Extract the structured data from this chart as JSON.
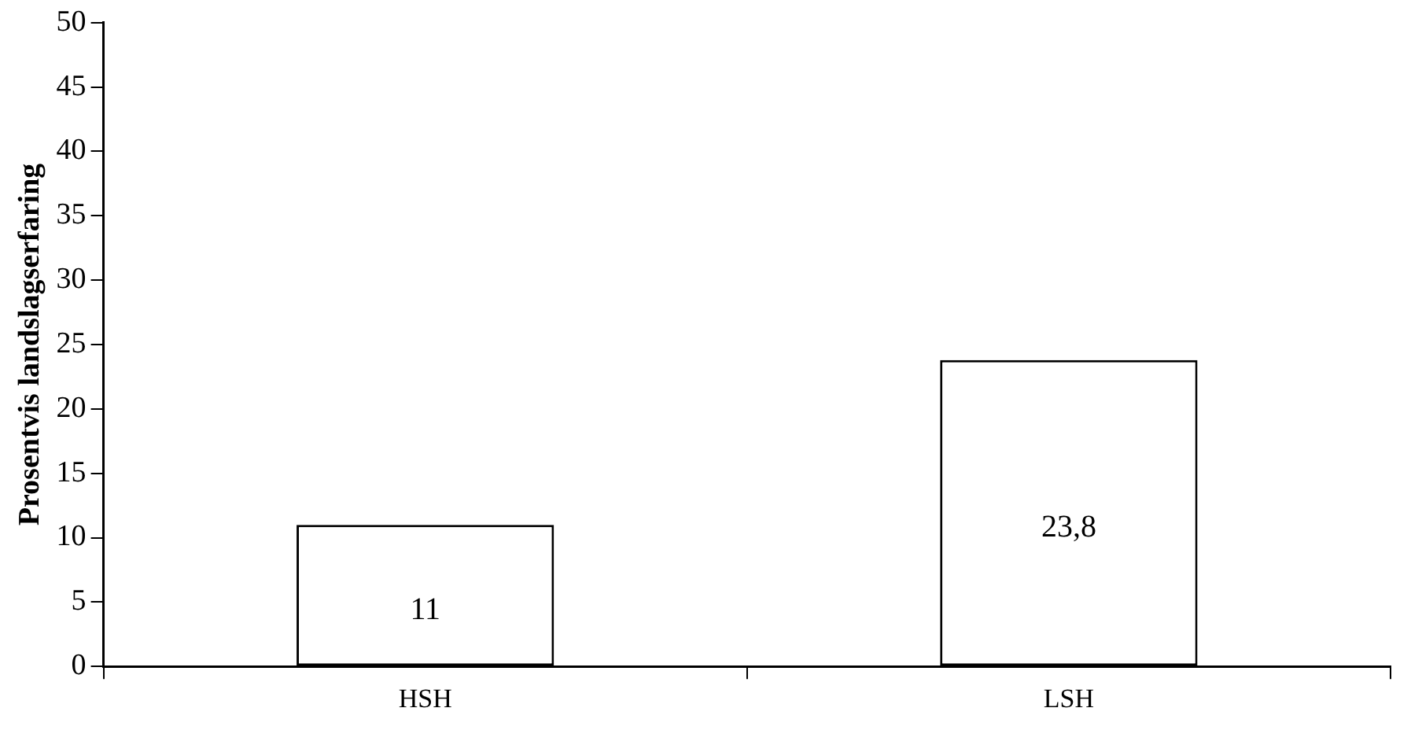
{
  "chart_data": {
    "type": "bar",
    "ylabel": "Prosentvis landslagserfaring",
    "categories": [
      "HSH",
      "LSH"
    ],
    "values": [
      11,
      23.8
    ],
    "value_labels": [
      "11",
      "23,8"
    ],
    "color": "#ffffff",
    "ylim": [
      0,
      50
    ],
    "yticks": [
      0,
      5,
      10,
      15,
      20,
      25,
      30,
      35,
      40,
      45,
      50
    ],
    "grid": false,
    "legend": false
  }
}
